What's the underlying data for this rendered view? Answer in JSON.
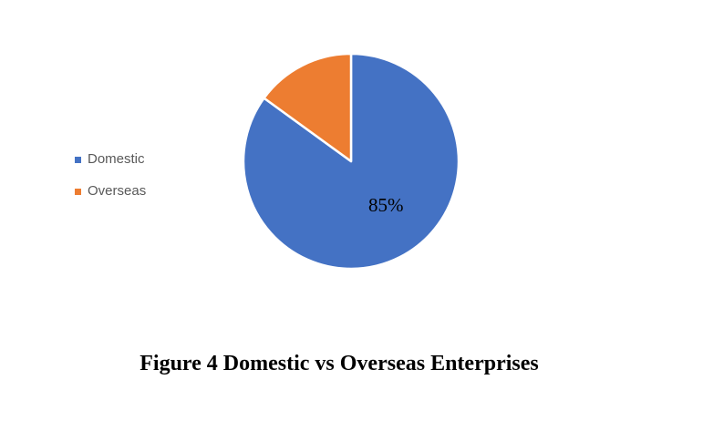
{
  "caption": "Figure 4 Domestic vs Overseas Enterprises",
  "legend": {
    "position": "left",
    "text_color": "#595959",
    "items": [
      {
        "label": "Domestic",
        "color": "#4472C4"
      },
      {
        "label": "Overseas",
        "color": "#ED7D31"
      }
    ]
  },
  "chart_data": {
    "type": "pie",
    "title": "Figure 4 Domestic vs Overseas Enterprises",
    "categories": [
      "Domestic",
      "Overseas"
    ],
    "values": [
      85,
      15
    ],
    "labels": [
      "85%",
      ""
    ],
    "colors": [
      "#4472C4",
      "#ED7D31"
    ],
    "slice_border_color": "#FFFFFF",
    "start_angle_deg": 0,
    "direction": "clockwise",
    "legend_position": "left",
    "background": "#FFFFFF"
  }
}
